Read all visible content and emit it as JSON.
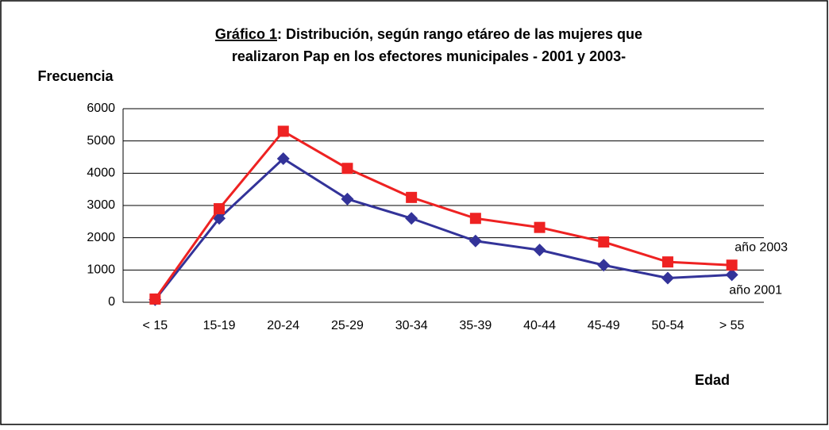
{
  "chart_data": {
    "type": "line",
    "title": [
      "Gráfico 1",
      ": Distribución, según rango etáreo de las mujeres que",
      "realizaron Pap en los efectores municipales -  2001 y 2003-"
    ],
    "y_label": "Frecuencia",
    "x_label": "Edad",
    "categories": [
      "< 15",
      "15-19",
      "20-24",
      "25-29",
      "30-34",
      "35-39",
      "40-44",
      "45-49",
      "50-54",
      "> 55"
    ],
    "series": [
      {
        "name": "año 2001",
        "color": "#333399",
        "marker": "diamond",
        "values": [
          80,
          2600,
          4450,
          3200,
          2600,
          1900,
          1620,
          1150,
          750,
          850
        ]
      },
      {
        "name": "año 2003",
        "color": "#ee2222",
        "marker": "square",
        "values": [
          100,
          2900,
          5300,
          4150,
          3250,
          2600,
          2320,
          1870,
          1250,
          1150
        ]
      }
    ],
    "ylim": [
      0,
      6000
    ],
    "yticks": [
      0,
      1000,
      2000,
      3000,
      4000,
      5000,
      6000
    ],
    "grid": true
  }
}
